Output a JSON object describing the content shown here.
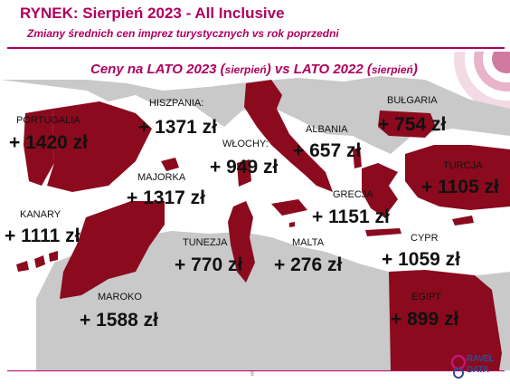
{
  "header": {
    "title": "RYNEK: Sierpień 2023 - All Inclusive",
    "subtitle": "Zmiany średnich cen imprez turystycznych vs rok poprzedni"
  },
  "comparison_heading": {
    "part1": "Ceny na LATO 2023 (",
    "part1_small": "sierpień",
    "part2": ") vs  LATO 2022 (",
    "part2_small": "sierpień",
    "part3": ")"
  },
  "destinations": [
    {
      "country": "PORTUGALIA",
      "price": "+ 1420 zł"
    },
    {
      "country": "HISZPANIA:",
      "price": "+ 1371 zł"
    },
    {
      "country": "MAJORKA",
      "price": "+ 1317 zł"
    },
    {
      "country": "KANARY",
      "price": "+ 1111 zł"
    },
    {
      "country": "MAROKO",
      "price": "+ 1588 zł"
    },
    {
      "country": "WŁOCHY:",
      "price": "+ 949 zł"
    },
    {
      "country": "TUNEZJA",
      "price": "+ 770 zł"
    },
    {
      "country": "MALTA",
      "price": "+ 276 zł"
    },
    {
      "country": "ALBANIA",
      "price": "+ 657 zł"
    },
    {
      "country": "GRECJA",
      "price": "+ 1151 zł"
    },
    {
      "country": "BUŁGARIA",
      "price": "+ 754 zł"
    },
    {
      "country": "TURCJA",
      "price": "+ 1105 zł"
    },
    {
      "country": "CYPR",
      "price": "+ 1059 zł"
    },
    {
      "country": "EGIPT",
      "price": "+ 899 zł"
    }
  ],
  "footer": {
    "page_number": "8",
    "logo_line1": "RAVEL",
    "logo_line2": "DATA"
  },
  "colors": {
    "accent": "#b0005e",
    "country_fill": "#8b0a1e",
    "land": "#c9c9c9"
  }
}
